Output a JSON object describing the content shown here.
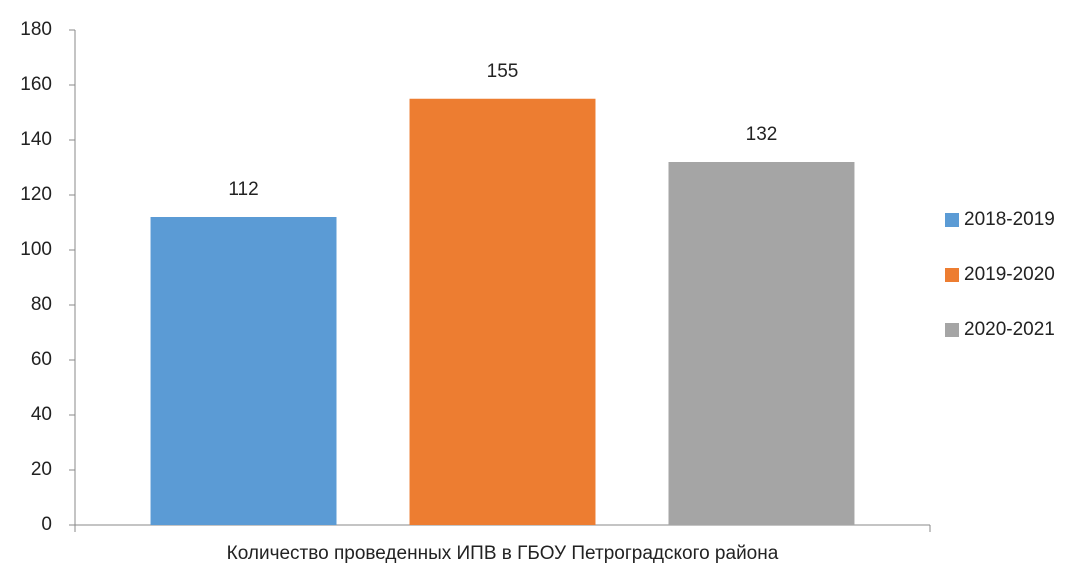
{
  "chart_data": {
    "type": "bar",
    "categories": [
      "Количество проведенных ИПВ в ГБОУ Петроградского района"
    ],
    "series": [
      {
        "name": "2018-2019",
        "color": "#5b9bd5",
        "values": [
          112
        ]
      },
      {
        "name": "2019-2020",
        "color": "#ed7d31",
        "values": [
          155
        ]
      },
      {
        "name": "2020-2021",
        "color": "#a5a5a5",
        "values": [
          132
        ]
      }
    ],
    "ylim": [
      0,
      180
    ],
    "yticks": [
      0,
      20,
      40,
      60,
      80,
      100,
      120,
      140,
      160,
      180
    ],
    "grid": false,
    "legend": "right"
  }
}
